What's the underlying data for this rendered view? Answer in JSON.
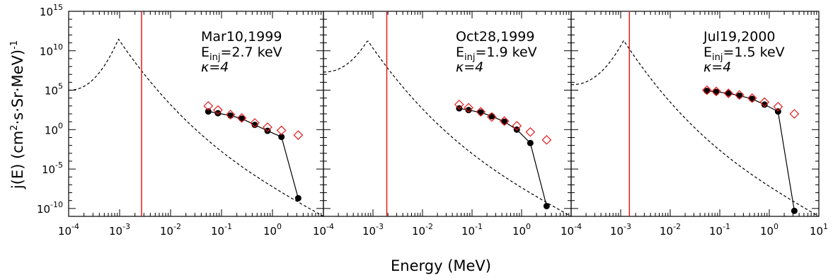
{
  "figure": {
    "ylabel_main": "j(E)  (cm",
    "ylabel_exp2": "2",
    "ylabel_mid": "·s·Sr·MeV)",
    "ylabel_exp": "-1",
    "xlabel": "Energy (MeV)"
  },
  "chart_data": [
    {
      "type": "line",
      "title": "",
      "date_label": "Mar10,1999",
      "einj_label": "E",
      "einj_sub": "inj",
      "einj_value": "=2.7 keV",
      "kappa_label": "κ=4",
      "xlabel": "Energy (MeV)",
      "xscale": "log",
      "yscale": "log",
      "xlim": [
        0.0001,
        10
      ],
      "ylim": [
        1e-11,
        1000000000000000.0
      ],
      "x_tick_bases": [
        "10",
        "10",
        "10",
        "10",
        "10"
      ],
      "x_tick_exps": [
        "-4",
        "-3",
        "-2",
        "-1",
        "0"
      ],
      "y_tick_bases": [
        "10",
        "10",
        "10",
        "10",
        "10",
        "10"
      ],
      "y_tick_exps": [
        "-10",
        "-5",
        "0",
        "5",
        "10",
        "15"
      ],
      "injection_energy_mev": 0.0027,
      "kappa_model": {
        "peak_x": 0.00095,
        "peak_y": 300000000000.0,
        "left_y": 100000.0,
        "right_x": 10,
        "right_y": 1e-11
      },
      "series": [
        {
          "x": [
            0.055,
            0.085,
            0.15,
            0.25,
            0.45,
            0.8,
            1.5,
            3.2
          ],
          "y": [
            200,
            120,
            60,
            25,
            4,
            0.7,
            0.12,
            2e-09
          ]
        },
        {
          "x": [
            0.055,
            0.085,
            0.15,
            0.25,
            0.45,
            0.8,
            1.5,
            3.2
          ],
          "y": [
            1000,
            300,
            80,
            30,
            7,
            2,
            0.8,
            0.2
          ]
        }
      ]
    },
    {
      "type": "line",
      "title": "",
      "date_label": "Oct28,1999",
      "einj_label": "E",
      "einj_sub": "inj",
      "einj_value": "=1.9 keV",
      "kappa_label": "κ=4",
      "xlabel": "Energy (MeV)",
      "xscale": "log",
      "yscale": "log",
      "xlim": [
        0.0001,
        10
      ],
      "ylim": [
        1e-11,
        1000000000000000.0
      ],
      "x_tick_bases": [
        "10",
        "10",
        "10",
        "10",
        "10"
      ],
      "x_tick_exps": [
        "-4",
        "-3",
        "-2",
        "-1",
        "0"
      ],
      "y_tick_bases": [],
      "y_tick_exps": [],
      "injection_energy_mev": 0.0019,
      "kappa_model": {
        "peak_x": 0.00078,
        "peak_y": 200000000000.0,
        "left_y": 20000000.0,
        "right_x": 10,
        "right_y": 1e-11
      },
      "series": [
        {
          "x": [
            0.055,
            0.085,
            0.15,
            0.25,
            0.45,
            0.8,
            1.5,
            3.2
          ],
          "y": [
            500,
            300,
            150,
            50,
            10,
            1,
            0.02,
            2e-10
          ]
        },
        {
          "x": [
            0.055,
            0.085,
            0.15,
            0.25,
            0.45,
            0.8,
            1.5,
            3.2
          ],
          "y": [
            1500,
            600,
            180,
            40,
            12,
            3,
            0.5,
            0.05
          ]
        }
      ]
    },
    {
      "type": "line",
      "title": "",
      "date_label": "Jul19,2000",
      "einj_label": "E",
      "einj_sub": "inj",
      "einj_value": "=1.5 keV",
      "kappa_label": "κ=4",
      "xlabel": "Energy (MeV)",
      "xscale": "log",
      "yscale": "log",
      "xlim": [
        0.0001,
        10
      ],
      "ylim": [
        1e-11,
        1000000000000000.0
      ],
      "x_tick_bases": [
        "10",
        "10",
        "10",
        "10",
        "10",
        "10"
      ],
      "x_tick_exps": [
        "-4",
        "-3",
        "-2",
        "-1",
        "0",
        "1"
      ],
      "y_tick_bases": [],
      "y_tick_exps": [],
      "injection_energy_mev": 0.0015,
      "kappa_model": {
        "peak_x": 0.00115,
        "peak_y": 200000000000.0,
        "left_y": 500000.0,
        "right_x": 10,
        "right_y": 1e-11
      },
      "series": [
        {
          "x": [
            0.055,
            0.085,
            0.15,
            0.25,
            0.45,
            0.8,
            1.5,
            3.2
          ],
          "y": [
            80000.0,
            60000.0,
            40000.0,
            20000.0,
            8000,
            1500,
            200,
            5e-11
          ]
        },
        {
          "x": [
            0.055,
            0.085,
            0.15,
            0.25,
            0.45,
            0.8,
            1.5,
            3.2
          ],
          "y": [
            100000.0,
            70000.0,
            40000.0,
            25000.0,
            10000.0,
            3000,
            800,
            100
          ]
        }
      ]
    }
  ]
}
